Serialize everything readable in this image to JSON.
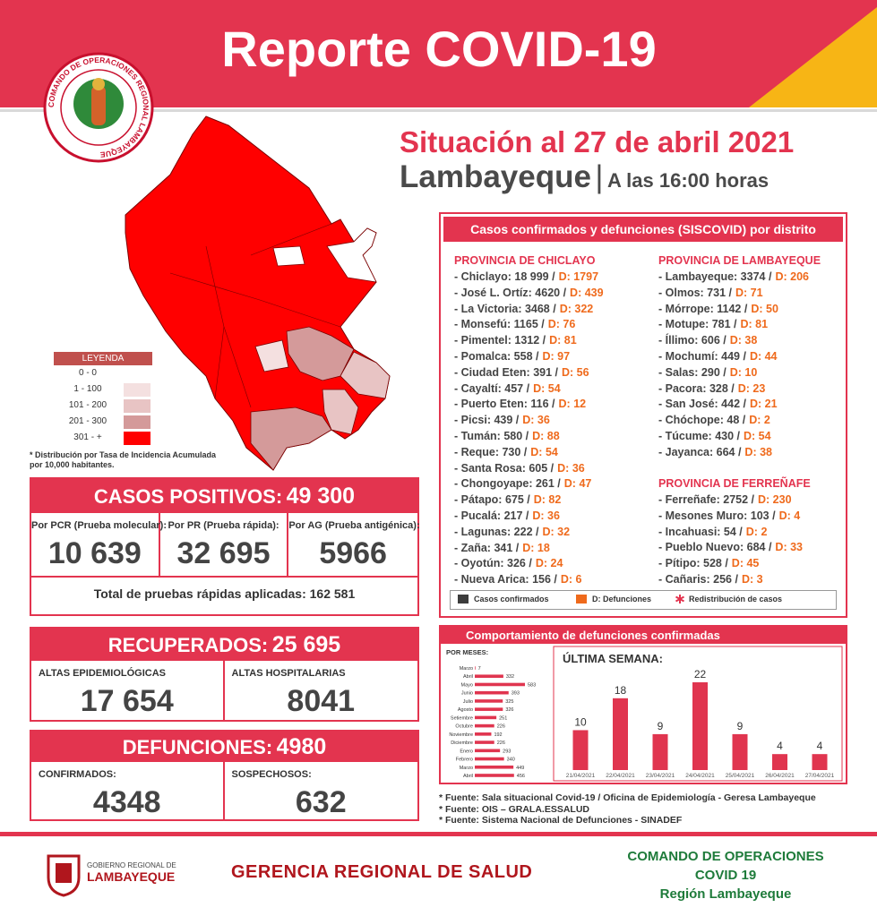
{
  "header": {
    "title": "Reporte COVID-19",
    "logo_text": "COMANDO DE OPERACIONES REGIONAL LAMBAYEQUE",
    "date": "Situación al 27 de abril 2021",
    "region": "Lambayeque",
    "separator": "|",
    "time": "A las 16:00 horas"
  },
  "map": {
    "legend_title": "LEYENDA",
    "legend": [
      {
        "label": "0 - 0",
        "color": "#ffffff"
      },
      {
        "label": "1 - 100",
        "color": "#f4e0e0"
      },
      {
        "label": "101 - 200",
        "color": "#e8c4c4"
      },
      {
        "label": "201 - 300",
        "color": "#d49a9a"
      },
      {
        "label": "301 - +",
        "color": "#ff0000"
      }
    ],
    "note": "* Distribución por Tasa de Incidencia Acumulada por 10,000 habitantes."
  },
  "positives": {
    "label": "CASOS POSITIVOS:",
    "value": "49 300",
    "items": [
      {
        "label": "Por PCR (Prueba molecular):",
        "value": "10 639"
      },
      {
        "label": "Por PR (Prueba rápida):",
        "value": "32 695"
      },
      {
        "label": "Por AG (Prueba antigénica):",
        "value": "5966"
      }
    ],
    "total": "Total de pruebas rápidas aplicadas: 162 581"
  },
  "recovered": {
    "label": "RECUPERADOS:",
    "value": "25 695",
    "items": [
      {
        "label": "ALTAS EPIDEMIOLÓGICAS",
        "value": "17 654"
      },
      {
        "label": "ALTAS HOSPITALARIAS",
        "value": "8041"
      }
    ]
  },
  "deaths": {
    "label": "DEFUNCIONES:",
    "value": "4980",
    "items": [
      {
        "label": "CONFIRMADOS:",
        "value": "4348"
      },
      {
        "label": "SOSPECHOSOS:",
        "value": "632"
      }
    ]
  },
  "districts": {
    "title": "Casos confirmados y defunciones (SISCOVID) por distrito",
    "provinces": [
      {
        "name": "PROVINCIA DE CHICLAYO",
        "items": [
          {
            "text": "- Chiclayo: 18 999 /",
            "deaths": "D: 1797"
          },
          {
            "text": "- José L. Ortíz: 4620 /",
            "deaths": "D: 439"
          },
          {
            "text": "- La Victoria: 3468 /",
            "deaths": "D: 322"
          },
          {
            "text": "- Monsefú: 1165 /",
            "deaths": "D: 76"
          },
          {
            "text": "- Pimentel: 1312 /",
            "deaths": "D: 81"
          },
          {
            "text": "- Pomalca: 558 /",
            "deaths": "D: 97"
          },
          {
            "text": "- Ciudad Eten: 391 /",
            "deaths": "D: 56"
          },
          {
            "text": "- Cayaltí: 457 /",
            "deaths": "D: 54"
          },
          {
            "text": "- Puerto Eten: 116 /",
            "deaths": "D: 12"
          },
          {
            "text": "- Picsi: 439 /",
            "deaths": "D: 36"
          },
          {
            "text": "- Tumán: 580 /",
            "deaths": "D: 88"
          },
          {
            "text": "- Reque: 730 /",
            "deaths": "D: 54"
          },
          {
            "text": "- Santa Rosa: 605 /",
            "deaths": "D: 36"
          },
          {
            "text": "- Chongoyape: 261 /",
            "deaths": "D: 47"
          },
          {
            "text": "- Pátapo: 675 /",
            "deaths": "D: 82"
          },
          {
            "text": "- Pucalá: 217 /",
            "deaths": "D: 36"
          },
          {
            "text": "- Lagunas: 222 /",
            "deaths": "D: 32"
          },
          {
            "text": "- Zaña: 341 /",
            "deaths": "D: 18"
          },
          {
            "text": "- Oyotún: 326 /",
            "deaths": "D: 24"
          },
          {
            "text": "- Nueva Arica: 156 /",
            "deaths": "D: 6"
          }
        ]
      },
      {
        "name": "PROVINCIA DE LAMBAYEQUE",
        "items": [
          {
            "text": "- Lambayeque: 3374 /",
            "deaths": "D: 206"
          },
          {
            "text": "- Olmos: 731 /",
            "deaths": "D: 71"
          },
          {
            "text": "- Mórrope: 1142 /",
            "deaths": "D: 50"
          },
          {
            "text": "- Motupe: 781 /",
            "deaths": "D: 81"
          },
          {
            "text": "- Íllimo: 606 /",
            "deaths": "D: 38"
          },
          {
            "text": "- Mochumí: 449 /",
            "deaths": "D: 44"
          },
          {
            "text": "- Salas: 290 /",
            "deaths": "D: 10"
          },
          {
            "text": "- Pacora: 328 /",
            "deaths": "D: 23"
          },
          {
            "text": "- San José: 442 /",
            "deaths": "D: 21"
          },
          {
            "text": "- Chóchope: 48 /",
            "deaths": "D: 2"
          },
          {
            "text": "- Túcume: 430 /",
            "deaths": "D: 54"
          },
          {
            "text": "- Jayanca: 664 /",
            "deaths": "D: 38"
          }
        ]
      },
      {
        "name": "PROVINCIA DE FERREÑAFE",
        "items": [
          {
            "text": "- Ferreñafe: 2752 /",
            "deaths": "D: 230"
          },
          {
            "text": "- Mesones Muro: 103 /",
            "deaths": "D: 4"
          },
          {
            "text": "- Incahuasi: 54 /",
            "deaths": "D: 2"
          },
          {
            "text": "- Pueblo Nuevo: 684 /",
            "deaths": "D: 33"
          },
          {
            "text": "- Pítipo: 528 /",
            "deaths": "D: 45"
          },
          {
            "text": "- Cañaris: 256 /",
            "deaths": "D: 3"
          }
        ]
      }
    ],
    "legend": [
      "Casos confirmados",
      "D: Defunciones",
      "Redistribución de casos"
    ]
  },
  "deaths_chart": {
    "title": "Comportamiento de defunciones confirmadas"
  },
  "chart_data": [
    {
      "type": "bar",
      "orientation": "horizontal",
      "title": "POR MESES:",
      "categories": [
        "Marzo",
        "Abril",
        "Mayo",
        "Junio",
        "Julio",
        "Agosto",
        "Setiembre",
        "Octubre",
        "Noviembre",
        "Diciembre",
        "Enero",
        "Febrero",
        "Marzo",
        "Abril"
      ],
      "values": [
        7,
        332,
        583,
        393,
        325,
        326,
        251,
        226,
        192,
        226,
        293,
        340,
        449,
        456
      ],
      "color": "#e0354f"
    },
    {
      "type": "bar",
      "title": "ÚLTIMA SEMANA:",
      "categories": [
        "21/04/2021",
        "22/04/2021",
        "23/04/2021",
        "24/04/2021",
        "25/04/2021",
        "26/04/2021",
        "27/04/2021"
      ],
      "values": [
        10,
        18,
        9,
        22,
        9,
        4,
        4
      ],
      "color": "#e0354f"
    }
  ],
  "sources": [
    "* Fuente: Sala situacional Covid-19 / Oficina de Epidemiología - Geresa Lambayeque",
    "* Fuente: OIS – GRALA.ESSALUD",
    "* Fuente: Sistema Nacional de Defunciones - SINADEF"
  ],
  "footer": {
    "gov_line1": "GOBIERNO REGIONAL DE",
    "gov_line2": "LAMBAYEQUE",
    "center": "GERENCIA REGIONAL DE SALUD",
    "right": [
      "COMANDO DE OPERACIONES",
      "COVID 19",
      "Región Lambayeque"
    ]
  }
}
